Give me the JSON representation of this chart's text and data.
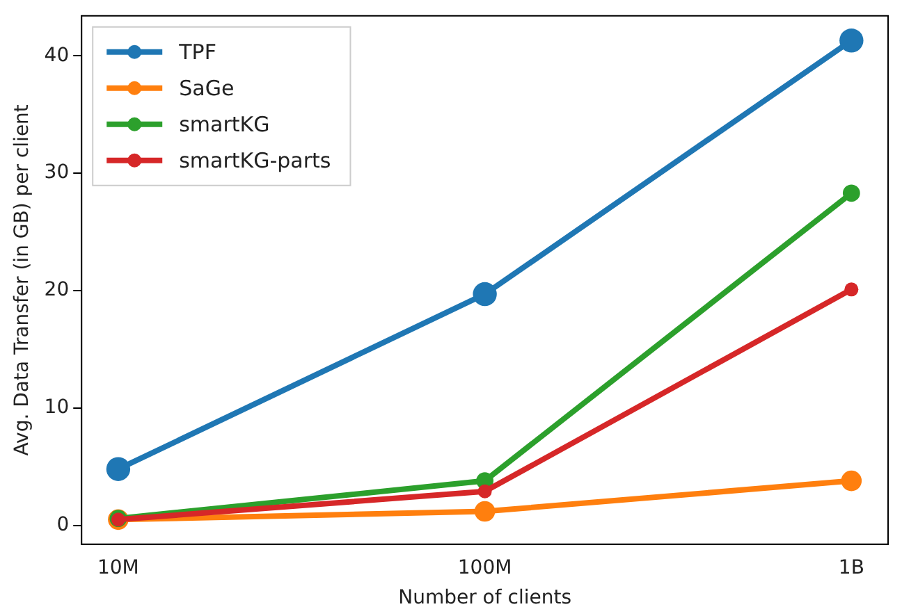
{
  "chart_data": {
    "type": "line",
    "xlabel": "Number of clients",
    "ylabel": "Avg. Data Transfer (in GB) per client",
    "categories": [
      "10M",
      "100M",
      "1B"
    ],
    "series": [
      {
        "name": "TPF",
        "color": "#1f77b4",
        "values": [
          4.8,
          19.7,
          41.3
        ]
      },
      {
        "name": "SaGe",
        "color": "#ff7f0e",
        "values": [
          0.5,
          1.2,
          3.8
        ]
      },
      {
        "name": "smartKG",
        "color": "#2ca02c",
        "values": [
          0.6,
          3.8,
          28.3
        ]
      },
      {
        "name": "smartKG-parts",
        "color": "#d62728",
        "values": [
          0.5,
          2.9,
          20.1
        ]
      }
    ],
    "ylim": [
      -1.6,
      43.4
    ],
    "yticks": [
      0,
      10,
      20,
      30,
      40
    ],
    "grid": false,
    "legend": "top left",
    "marker": "circle",
    "line_style": "solid"
  }
}
